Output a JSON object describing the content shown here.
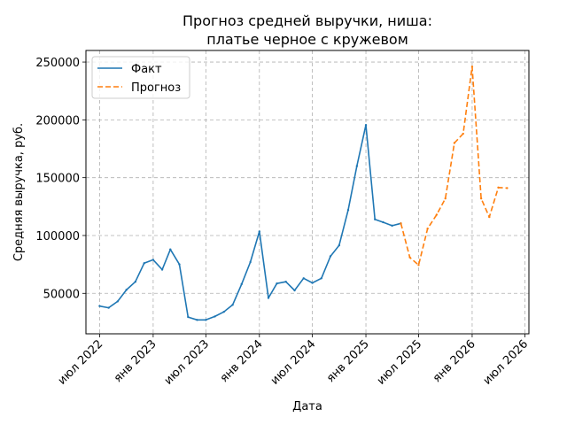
{
  "chart_data": {
    "type": "line",
    "title_line1": "Прогноз средней выручки, ниша:",
    "title_line2": "платье черное с кружевом",
    "xlabel": "Дата",
    "ylabel": "Средняя выручка, руб.",
    "grid": true,
    "legend_position": "top-left",
    "xlim": [
      "2022-05-15",
      "2026-07-15"
    ],
    "ylim": [
      15000,
      260000
    ],
    "x_ticks": [
      {
        "date": "2022-07-01",
        "label": "июл 2022"
      },
      {
        "date": "2023-01-01",
        "label": "янв 2023"
      },
      {
        "date": "2023-07-01",
        "label": "июл 2023"
      },
      {
        "date": "2024-01-01",
        "label": "янв 2024"
      },
      {
        "date": "2024-07-01",
        "label": "июл 2024"
      },
      {
        "date": "2025-01-01",
        "label": "янв 2025"
      },
      {
        "date": "2025-07-01",
        "label": "июл 2025"
      },
      {
        "date": "2026-01-01",
        "label": "янв 2026"
      },
      {
        "date": "2026-07-01",
        "label": "июл 2026"
      }
    ],
    "y_ticks": [
      {
        "value": 50000,
        "label": "50000"
      },
      {
        "value": 100000,
        "label": "100000"
      },
      {
        "value": 150000,
        "label": "150000"
      },
      {
        "value": 200000,
        "label": "200000"
      },
      {
        "value": 250000,
        "label": "250000"
      }
    ],
    "series": [
      {
        "name": "Факт",
        "color": "#1f77b4",
        "style": "solid",
        "points": [
          [
            "2022-07-01",
            39000
          ],
          [
            "2022-08-01",
            37500
          ],
          [
            "2022-09-01",
            43000
          ],
          [
            "2022-10-01",
            53000
          ],
          [
            "2022-11-01",
            60000
          ],
          [
            "2022-12-01",
            76000
          ],
          [
            "2023-01-01",
            79000
          ],
          [
            "2023-02-01",
            70500
          ],
          [
            "2023-03-01",
            88000
          ],
          [
            "2023-04-01",
            75000
          ],
          [
            "2023-05-01",
            29500
          ],
          [
            "2023-06-01",
            27000
          ],
          [
            "2023-07-01",
            27000
          ],
          [
            "2023-08-01",
            30000
          ],
          [
            "2023-09-01",
            34000
          ],
          [
            "2023-10-01",
            40000
          ],
          [
            "2023-11-01",
            58000
          ],
          [
            "2023-12-01",
            77000
          ],
          [
            "2024-01-01",
            103500
          ],
          [
            "2024-02-01",
            46000
          ],
          [
            "2024-03-01",
            58500
          ],
          [
            "2024-04-01",
            60000
          ],
          [
            "2024-05-01",
            52500
          ],
          [
            "2024-06-01",
            63000
          ],
          [
            "2024-07-01",
            59000
          ],
          [
            "2024-08-01",
            63000
          ],
          [
            "2024-09-01",
            82000
          ],
          [
            "2024-10-01",
            91500
          ],
          [
            "2024-11-01",
            122000
          ],
          [
            "2024-12-01",
            160000
          ],
          [
            "2025-01-01",
            195500
          ],
          [
            "2025-02-01",
            114000
          ],
          [
            "2025-03-01",
            111500
          ],
          [
            "2025-04-01",
            108500
          ],
          [
            "2025-05-01",
            110500
          ]
        ]
      },
      {
        "name": "Прогноз",
        "color": "#ff7f0e",
        "style": "dashed",
        "points": [
          [
            "2025-05-01",
            110500
          ],
          [
            "2025-06-01",
            81000
          ],
          [
            "2025-07-01",
            74500
          ],
          [
            "2025-08-01",
            106000
          ],
          [
            "2025-09-01",
            118000
          ],
          [
            "2025-10-01",
            132000
          ],
          [
            "2025-11-01",
            180000
          ],
          [
            "2025-12-01",
            188000
          ],
          [
            "2026-01-01",
            246000
          ],
          [
            "2026-02-01",
            132000
          ],
          [
            "2026-03-01",
            116000
          ],
          [
            "2026-04-01",
            141500
          ],
          [
            "2026-05-01",
            141000
          ]
        ]
      }
    ]
  }
}
